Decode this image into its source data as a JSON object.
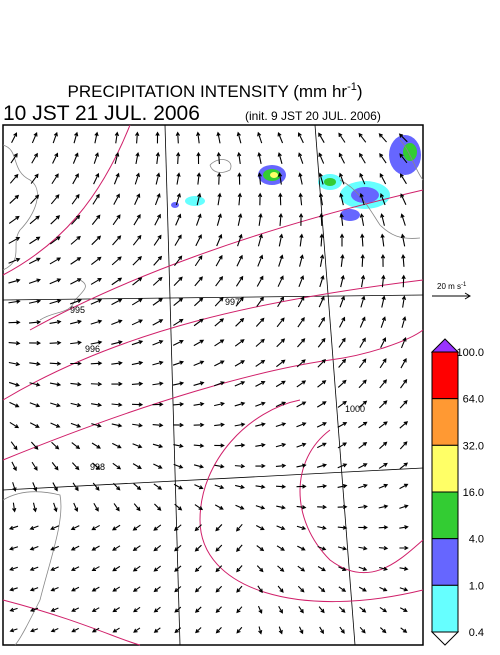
{
  "header": {
    "title": {
      "main": "PRECIPITATION INTENSITY (mm hr",
      "exponent": "-1",
      "close": ")"
    },
    "valid_time": "10 JST 21 JUL. 2006",
    "init_time": "(init. 9 JST 20 JUL. 2006)"
  },
  "wind_scale": {
    "label": "20 m s",
    "exponent": "-1"
  },
  "colorbar": {
    "labels": [
      "100.0",
      "64.0",
      "32.0",
      "16.0",
      "4.0",
      "1.0",
      "0.4"
    ],
    "colors": [
      "#ff0000",
      "#ff9933",
      "#ffff66",
      "#33cc33",
      "#6666ff",
      "#66ffff"
    ],
    "over_color": "#9933ff",
    "under_color": "#ffffff"
  },
  "contour_labels": [
    "995",
    "996",
    "997",
    "1000",
    "998"
  ]
}
